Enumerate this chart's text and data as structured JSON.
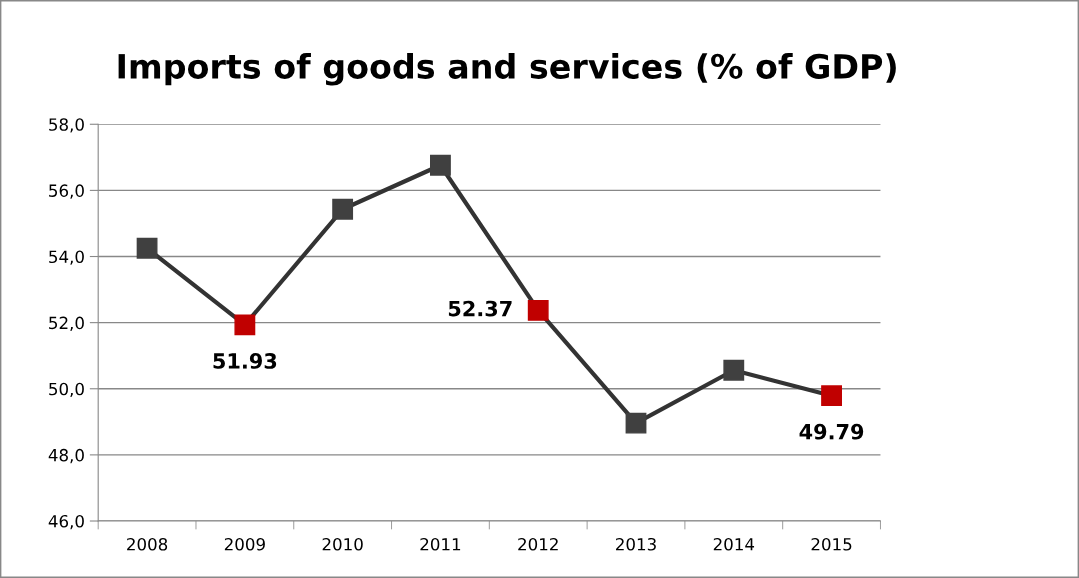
{
  "chart_data": {
    "type": "line",
    "title": "Imports of goods and services (% of GDP)",
    "categories": [
      "2008",
      "2009",
      "2010",
      "2011",
      "2012",
      "2013",
      "2014",
      "2015"
    ],
    "series": [
      {
        "color": "#333333",
        "colors": [
          "#404040",
          "#c00000",
          "#404040",
          "#404040",
          "#c00000",
          "#404040",
          "#404040",
          "#c00000"
        ],
        "values": [
          54.25,
          51.93,
          55.43,
          56.76,
          52.37,
          48.96,
          50.56,
          49.79
        ],
        "value_labels": [
          null,
          "51.93",
          null,
          null,
          "52.37",
          null,
          null,
          "49.79"
        ]
      }
    ],
    "ylim": [
      46,
      58
    ],
    "yticks": [
      {
        "value": 46,
        "label": "46,0"
      },
      {
        "value": 48,
        "label": "48,0"
      },
      {
        "value": 50,
        "label": "50,0"
      },
      {
        "value": 52,
        "label": "52,0"
      },
      {
        "value": 54,
        "label": "54,0"
      },
      {
        "value": 56,
        "label": "56,0"
      },
      {
        "value": 58,
        "label": "58,0"
      }
    ],
    "grid": "y",
    "marker": "square",
    "line_style": "solid",
    "legend": false
  }
}
